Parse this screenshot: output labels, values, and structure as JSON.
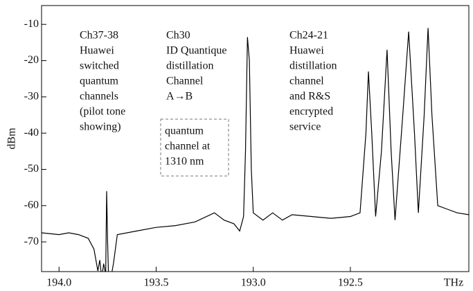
{
  "chart_data": {
    "type": "line",
    "x_label": "THz",
    "y_label": "dBm",
    "xlim": [
      194.09,
      191.89
    ],
    "ylim": [
      -78.2,
      -4.8
    ],
    "xticks": [
      {
        "value": 194.0,
        "label": "194.0"
      },
      193.5,
      {
        "value": 193.0,
        "label": "193.0"
      },
      192.5
    ],
    "yticks": [
      -10,
      -20,
      -30,
      -40,
      -50,
      -60,
      -70
    ],
    "color": "#000000",
    "x": [
      194.09,
      194.0,
      193.95,
      193.9,
      193.85,
      193.82,
      193.8,
      193.79,
      193.78,
      193.77,
      193.76,
      193.755,
      193.75,
      193.745,
      193.73,
      193.72,
      193.7,
      193.6,
      193.5,
      193.4,
      193.3,
      193.2,
      193.15,
      193.1,
      193.07,
      193.05,
      193.04,
      193.03,
      193.02,
      193.01,
      193.0,
      192.95,
      192.9,
      192.85,
      192.8,
      192.7,
      192.6,
      192.5,
      192.45,
      192.42,
      192.407,
      192.39,
      192.37,
      192.34,
      192.311,
      192.29,
      192.27,
      192.23,
      192.2,
      192.17,
      192.15,
      192.12,
      192.1,
      192.08,
      192.05,
      192.0,
      191.95,
      191.89
    ],
    "values": [
      -67.5,
      -68,
      -67.5,
      -68,
      -69,
      -72,
      -78,
      -75,
      -80,
      -76,
      -79,
      -56,
      -70,
      -80,
      -79,
      -76,
      -68,
      -67,
      -66,
      -65.5,
      -64.5,
      -62,
      -64,
      -65,
      -67,
      -63,
      -45,
      -13.5,
      -20,
      -50,
      -62,
      -64,
      -62,
      -64,
      -62.5,
      -63,
      -63.5,
      -63,
      -62,
      -40,
      -23,
      -40,
      -63,
      -45,
      -17,
      -45,
      -64,
      -35,
      -12,
      -40,
      -62,
      -35,
      -11,
      -35,
      -60,
      -61,
      -62,
      -62.5
    ],
    "annotations": [
      {
        "lines": [
          "Ch37-38",
          "Huawei",
          "switched",
          "quantum",
          "channels",
          "(pilot tone",
          "showing)"
        ]
      },
      {
        "lines": [
          "Ch30",
          "ID Quantique",
          "distillation",
          "Channel",
          "A→B"
        ]
      },
      {
        "lines": [
          "quantum",
          "channel at",
          "1310 nm"
        ]
      },
      {
        "lines": [
          "Ch24-21",
          "Huawei",
          "distillation",
          "channel",
          "and R&S",
          "encrypted",
          "service"
        ]
      }
    ]
  }
}
